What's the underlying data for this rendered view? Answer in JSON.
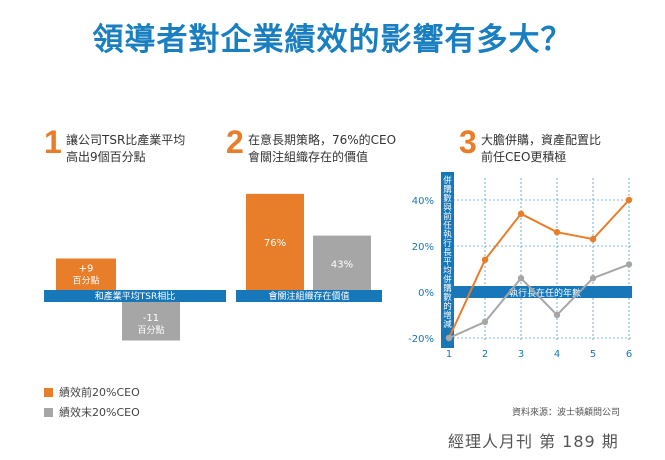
{
  "title": "領導者對企業績效的影響有多大？",
  "colors": {
    "top": "#e87d2a",
    "bottom": "#a6a6a6",
    "band": "#1777b8",
    "title": "#1a7fc0"
  },
  "panels": [
    {
      "num": "1",
      "line1": "讓公司TSR比產業平均",
      "line2": "高出9個百分點"
    },
    {
      "num": "2",
      "line1": "在意長期策略，76%的CEO",
      "line2": "會關注組織存在的價值"
    },
    {
      "num": "3",
      "line1": "大膽併購，資產配置比",
      "line2": "前任CEO更積極"
    }
  ],
  "legend": {
    "top": "績效前20%CEO",
    "bottom": "績效末20%CEO"
  },
  "source": "資料來源：波士頓顧問公司",
  "magazine": "經理人月刊 第 189 期",
  "chart_data": [
    {
      "type": "bar",
      "band_label": "和產業平均TSR相比",
      "series": [
        {
          "name": "績效前20%CEO",
          "values": [
            9
          ],
          "label": "+9",
          "unit": "百分點"
        },
        {
          "name": "績效末20%CEO",
          "values": [
            -11
          ],
          "label": "-11",
          "unit": "百分點"
        }
      ]
    },
    {
      "type": "bar",
      "band_label": "會關注組織存在價值",
      "series": [
        {
          "name": "績效前20%CEO",
          "values": [
            76
          ],
          "label": "76%"
        },
        {
          "name": "績效末20%CEO",
          "values": [
            43
          ],
          "label": "43%"
        }
      ]
    },
    {
      "type": "line",
      "xlabel": "執行長在任的年數",
      "ylabel": "併購數與前任執行長平均併購數的增減",
      "x": [
        1,
        2,
        3,
        4,
        5,
        6
      ],
      "ylim": [
        -20,
        40
      ],
      "y_ticks": [
        "40%",
        "20%",
        "0%",
        "-20%"
      ],
      "x_ticks": [
        "1",
        "2",
        "3",
        "4",
        "5",
        "6"
      ],
      "grid": true,
      "series": [
        {
          "name": "績效前20%CEO",
          "values": [
            -20,
            14,
            34,
            26,
            23,
            40
          ]
        },
        {
          "name": "績效末20%CEO",
          "values": [
            -20,
            -13,
            6,
            -10,
            6,
            12
          ]
        }
      ]
    }
  ]
}
